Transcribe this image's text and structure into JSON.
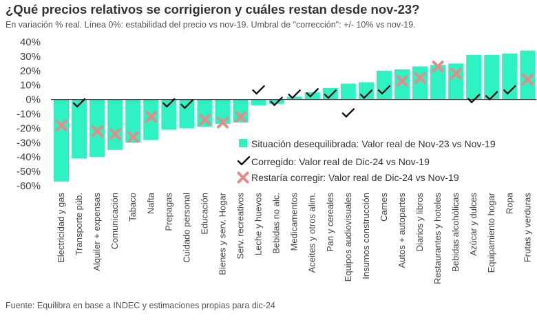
{
  "header": {
    "title": "¿Qué precios relativos se corrigieron y cuáles restan desde nov-23?",
    "subtitle": "En variación % real. Línea 0%: estabilidad del precio vs nov-19. Umbral de \"corrección\": +/- 10% vs nov-19."
  },
  "footer": {
    "source": "Fuente: Equilibra en base a INDEC y estimaciones propias para dic-24"
  },
  "colors": {
    "bar": "#2ef2c2",
    "check": "#111111",
    "cross": "#e88a8a",
    "axis": "#444444"
  },
  "chart_data": {
    "type": "bar",
    "title": "¿Qué precios relativos se corrigieron y cuáles restan desde nov-23?",
    "ylim": [
      -60,
      40
    ],
    "yticks": [
      40,
      30,
      20,
      10,
      0,
      -10,
      -20,
      -30,
      -40,
      -50,
      -60
    ],
    "ytick_labels": [
      "40%",
      "30%",
      "20%",
      "10%",
      "0%",
      "-10%",
      "-20%",
      "-30%",
      "-40%",
      "-50%",
      "-60%"
    ],
    "legend_position": "center-right",
    "grid": false,
    "categories": [
      "Electricidad y gas",
      "Transporte púb.",
      "Alquiler + expensas",
      "Comunicación",
      "Tabaco",
      "Nafta",
      "Prepagas",
      "Cuidado personal",
      "Educación",
      "Bienes y serv. Hogar",
      "Serv. recreativos",
      "Leche y huevos",
      "Bebidas no alc.",
      "Medicamentos",
      "Aceites y otros alim.",
      "Pan y cereales",
      "Equipos audiovisuales",
      "Insumos construcción",
      "Carnes",
      "Autos + autopartes",
      "Diarios y libros",
      "Restaurantes y hoteles",
      "Bebidas alcohólicas",
      "Azúcar y dulces",
      "Equipamiento hogar",
      "Ropa",
      "Frutas y verduras"
    ],
    "series": [
      {
        "name": "Situación desequilibrada: Valor real de Nov-23 vs Nov-19",
        "marker": "bar",
        "values": [
          -57,
          -41,
          -40,
          -35,
          -30,
          -28,
          -21,
          -20,
          -19,
          -17,
          -16,
          -4,
          -3,
          2,
          5,
          8,
          11,
          12,
          20,
          21,
          23,
          24,
          25,
          31,
          31,
          32,
          34
        ]
      },
      {
        "name": "Corregido: Valor real de Dic-24 vs Nov-19",
        "marker": "check",
        "values": [
          null,
          -3,
          null,
          null,
          null,
          null,
          -3,
          -4,
          null,
          null,
          null,
          6,
          -2,
          3,
          4,
          3,
          -10,
          3,
          6,
          null,
          null,
          null,
          null,
          0,
          2,
          6,
          null
        ]
      },
      {
        "name": "Restaría corregir: Valor real de Dic-24 vs Nov-19",
        "marker": "cross",
        "values": [
          -18,
          null,
          -22,
          -24,
          -26,
          -12,
          null,
          null,
          -14,
          -16,
          -12,
          null,
          null,
          null,
          null,
          null,
          null,
          null,
          null,
          13,
          15,
          23,
          18,
          null,
          null,
          null,
          14
        ]
      }
    ]
  }
}
